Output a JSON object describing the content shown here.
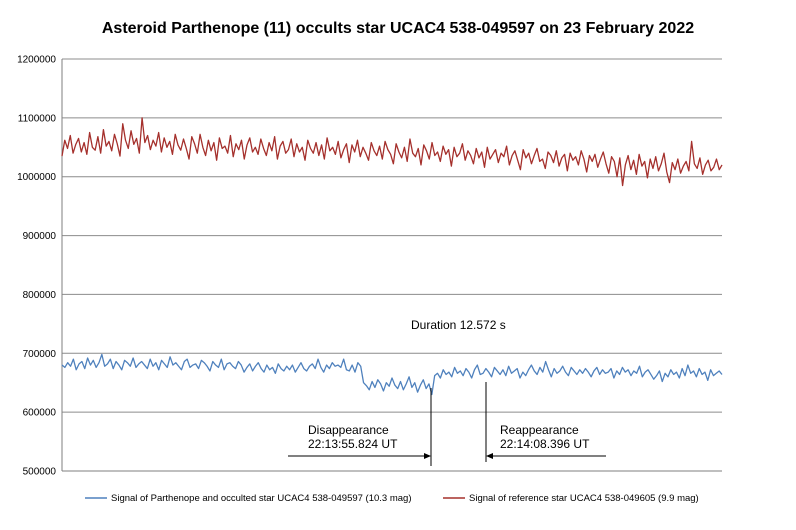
{
  "chart_data": {
    "type": "line",
    "title": "Asteroid Parthenope (11) occults star UCAC4 538-049597 on 23 February 2022",
    "xlabel": "",
    "ylabel": "",
    "ylim": [
      500000,
      1200000
    ],
    "yticks": [
      500000,
      600000,
      700000,
      800000,
      900000,
      1000000,
      1100000,
      1200000
    ],
    "ytick_labels": [
      "500000",
      "600000",
      "700000",
      "800000",
      "900000",
      "1000000",
      "1100000",
      "1200000"
    ],
    "grid": true,
    "legend_position": "bottom",
    "series": [
      {
        "name": "Signal of Parthenope and occulted star UCAC4 538-049597 (10.3 mag)",
        "color": "#4f81bd",
        "values": [
          680000,
          676000,
          684000,
          678000,
          690000,
          672000,
          682000,
          686000,
          674000,
          692000,
          680000,
          688000,
          676000,
          684000,
          698000,
          678000,
          682000,
          690000,
          674000,
          686000,
          680000,
          672000,
          688000,
          684000,
          678000,
          692000,
          676000,
          682000,
          686000,
          680000,
          674000,
          690000,
          678000,
          684000,
          672000,
          688000,
          682000,
          676000,
          694000,
          680000,
          684000,
          678000,
          672000,
          686000,
          690000,
          676000,
          680000,
          682000,
          674000,
          688000,
          684000,
          678000,
          670000,
          686000,
          680000,
          676000,
          690000,
          672000,
          682000,
          684000,
          678000,
          674000,
          686000,
          680000,
          668000,
          676000,
          682000,
          670000,
          678000,
          684000,
          674000,
          668000,
          680000,
          672000,
          676000,
          666000,
          682000,
          674000,
          670000,
          678000,
          672000,
          680000,
          668000,
          676000,
          684000,
          674000,
          670000,
          678000,
          682000,
          674000,
          690000,
          676000,
          668000,
          680000,
          674000,
          684000,
          678000,
          680000,
          676000,
          690000,
          672000,
          670000,
          680000,
          668000,
          684000,
          678000,
          650000,
          645000,
          638000,
          652000,
          642000,
          655000,
          648000,
          636000,
          650000,
          644000,
          658000,
          646000,
          640000,
          652000,
          638000,
          648000,
          660000,
          642000,
          650000,
          634000,
          646000,
          655000,
          640000,
          648000,
          630000,
          662000,
          666000,
          658000,
          672000,
          664000,
          668000,
          660000,
          676000,
          666000,
          670000,
          662000,
          674000,
          668000,
          658000,
          672000,
          680000,
          664000,
          666000,
          674000,
          668000,
          660000,
          676000,
          670000,
          664000,
          672000,
          662000,
          678000,
          666000,
          670000,
          674000,
          658000,
          668000,
          662000,
          672000,
          680000,
          670000,
          664000,
          676000,
          668000,
          686000,
          672000,
          660000,
          674000,
          666000,
          670000,
          678000,
          668000,
          662000,
          676000,
          670000,
          664000,
          672000,
          666000,
          674000,
          668000,
          660000,
          670000,
          676000,
          664000,
          672000,
          666000,
          668000,
          674000,
          658000,
          670000,
          664000,
          676000,
          668000,
          672000,
          662000,
          670000,
          666000,
          678000,
          660000,
          668000,
          672000,
          664000,
          656000,
          662000,
          670000,
          652000,
          666000,
          660000,
          672000,
          664000,
          668000,
          658000,
          674000,
          662000,
          680000,
          666000,
          670000,
          660000,
          674000,
          664000,
          668000,
          654000,
          672000,
          662000,
          666000,
          670000,
          664000
        ]
      },
      {
        "name": "Signal of reference star UCAC4 538-049605 (9.9 mag)",
        "color": "#a5302c",
        "values": [
          1035000,
          1062000,
          1048000,
          1070000,
          1040000,
          1055000,
          1065000,
          1042000,
          1058000,
          1038000,
          1075000,
          1050000,
          1045000,
          1068000,
          1040000,
          1080000,
          1052000,
          1060000,
          1044000,
          1072000,
          1056000,
          1035000,
          1090000,
          1062000,
          1048000,
          1078000,
          1055000,
          1065000,
          1040000,
          1100000,
          1058000,
          1070000,
          1046000,
          1062000,
          1052000,
          1075000,
          1042000,
          1066000,
          1050000,
          1060000,
          1038000,
          1072000,
          1054000,
          1045000,
          1064000,
          1048000,
          1030000,
          1068000,
          1056000,
          1040000,
          1072000,
          1050000,
          1036000,
          1062000,
          1044000,
          1058000,
          1028000,
          1066000,
          1048000,
          1052000,
          1040000,
          1070000,
          1034000,
          1056000,
          1046000,
          1062000,
          1030000,
          1054000,
          1066000,
          1042000,
          1050000,
          1038000,
          1064000,
          1048000,
          1036000,
          1058000,
          1044000,
          1068000,
          1030000,
          1052000,
          1060000,
          1040000,
          1046000,
          1064000,
          1034000,
          1056000,
          1042000,
          1050000,
          1028000,
          1062000,
          1048000,
          1040000,
          1058000,
          1036000,
          1054000,
          1030000,
          1066000,
          1044000,
          1050000,
          1038000,
          1060000,
          1032000,
          1046000,
          1056000,
          1024000,
          1054000,
          1042000,
          1062000,
          1034000,
          1050000,
          1040000,
          1028000,
          1058000,
          1044000,
          1036000,
          1052000,
          1030000,
          1060000,
          1046000,
          1038000,
          1022000,
          1056000,
          1042000,
          1032000,
          1050000,
          1026000,
          1064000,
          1040000,
          1034000,
          1048000,
          1020000,
          1054000,
          1044000,
          1030000,
          1058000,
          1036000,
          1042000,
          1026000,
          1052000,
          1038000,
          1046000,
          1018000,
          1050000,
          1034000,
          1040000,
          1056000,
          1028000,
          1044000,
          1036000,
          1022000,
          1048000,
          1032000,
          1042000,
          1016000,
          1050000,
          1030000,
          1038000,
          1046000,
          1024000,
          1040000,
          1034000,
          1052000,
          1020000,
          1036000,
          1044000,
          1028000,
          1012000,
          1046000,
          1032000,
          1040000,
          1022000,
          1036000,
          1048000,
          1026000,
          1030000,
          1014000,
          1042000,
          1036000,
          1024000,
          1044000,
          1018000,
          1032000,
          1038000,
          1010000,
          1040000,
          1028000,
          1034000,
          1020000,
          1044000,
          1030000,
          1008000,
          1036000,
          1026000,
          1038000,
          1016000,
          1030000,
          1042000,
          1022000,
          1006000,
          1034000,
          1026000,
          1000000,
          1032000,
          985000,
          1020000,
          1036000,
          1012000,
          1028000,
          1004000,
          1038000,
          1018000,
          1026000,
          998000,
          1030000,
          1014000,
          1034000,
          1010000,
          1022000,
          1040000,
          1008000,
          990000,
          1024000,
          1012000,
          1030000,
          1006000,
          1018000,
          1026000,
          1010000,
          1060000,
          1022000,
          1014000,
          1032000,
          1004000,
          1020000,
          1028000,
          1010000,
          1016000,
          1030000,
          1012000,
          1020000
        ]
      }
    ],
    "annotations": {
      "duration": "Duration 12.572 s",
      "disappearance_label": "Disappearance",
      "disappearance_time": "22:13:55.824 UT",
      "reappearance_label": "Reappearance",
      "reappearance_time": "22:14:08.396 UT"
    }
  }
}
